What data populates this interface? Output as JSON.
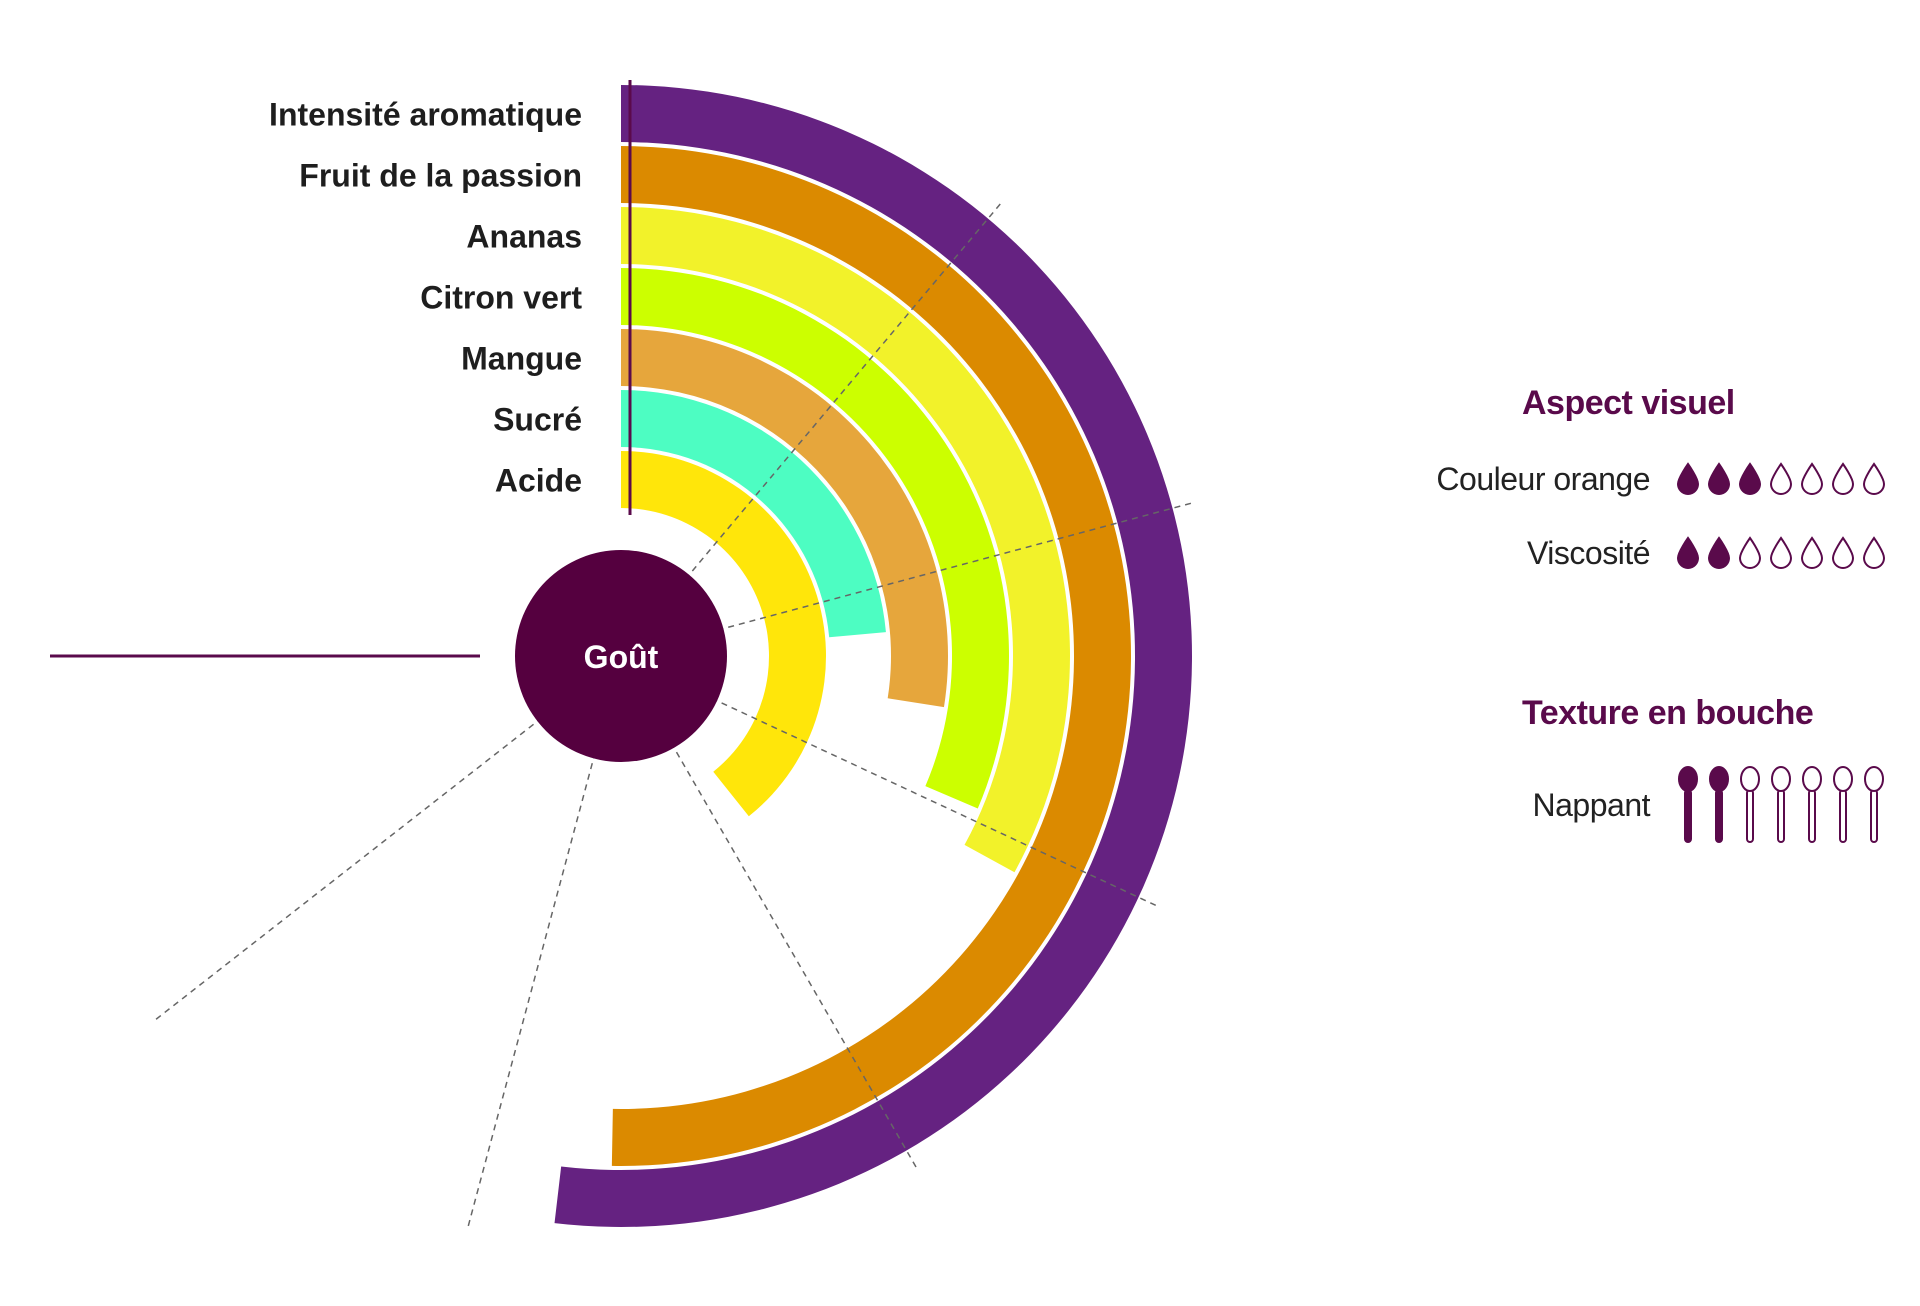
{
  "chart_data": {
    "type": "radial-bar",
    "center_label": "Goût",
    "scale_max": 7,
    "series": [
      {
        "name": "Intensité aromatique",
        "value": 6.6,
        "color": "#652281"
      },
      {
        "name": "Fruit de la passion",
        "value": 6.4,
        "color": "#db8a00"
      },
      {
        "name": "Ananas",
        "value": 4.2,
        "color": "#f2f22a"
      },
      {
        "name": "Citron vert",
        "value": 4.0,
        "color": "#ccff00"
      },
      {
        "name": "Mangue",
        "value": 3.5,
        "color": "#e6a63c"
      },
      {
        "name": "Sucré",
        "value": 3.0,
        "color": "#4dfdc2"
      },
      {
        "name": "Acide",
        "value": 5.0,
        "color": "#ffe60a"
      }
    ]
  },
  "aspect_visuel": {
    "title": "Aspect visuel",
    "items": [
      {
        "label": "Couleur orange",
        "filled": 3,
        "total": 7
      },
      {
        "label": "Viscosité",
        "filled": 2,
        "total": 7
      }
    ]
  },
  "texture": {
    "title": "Texture en bouche",
    "items": [
      {
        "label": "Nappant",
        "filled": 2,
        "total": 7
      }
    ]
  },
  "colors": {
    "accent": "#5a0a4b",
    "center": "#55003f",
    "line": "#5a0a4b"
  }
}
